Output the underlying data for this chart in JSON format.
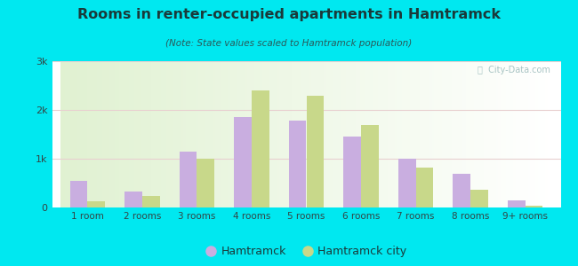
{
  "categories": [
    "1 room",
    "2 rooms",
    "3 rooms",
    "4 rooms",
    "5 rooms",
    "6 rooms",
    "7 rooms",
    "8 rooms",
    "9+ rooms"
  ],
  "hamtramck": [
    550,
    330,
    1150,
    1850,
    1780,
    1450,
    1000,
    700,
    150
  ],
  "hamtramck_city": [
    130,
    240,
    1000,
    2400,
    2300,
    1700,
    820,
    370,
    30
  ],
  "color_hamtramck": "#c9aee0",
  "color_city": "#c8d88a",
  "title": "Rooms in renter-occupied apartments in Hamtramck",
  "subtitle": "(Note: State values scaled to Hamtramck population)",
  "legend_hamtramck": "Hamtramck",
  "legend_city": "Hamtramck city",
  "ylim": [
    0,
    3000
  ],
  "yticks": [
    0,
    1000,
    2000,
    3000
  ],
  "ytick_labels": [
    "0",
    "1k",
    "2k",
    "3k"
  ],
  "bg_outer": "#00e8f0",
  "title_color": "#1a3a3a",
  "subtitle_color": "#2a5a5a",
  "watermark": "ⓘ  City-Data.com",
  "grid_color": "#d0e8d0"
}
